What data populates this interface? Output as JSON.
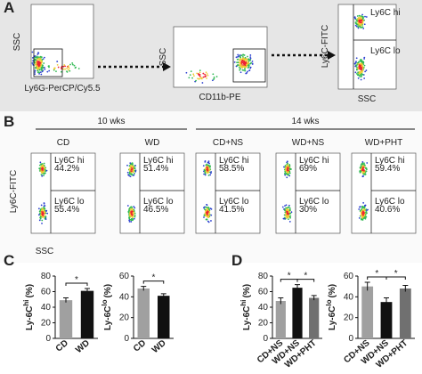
{
  "panel_a": {
    "label": "A",
    "plots": [
      {
        "ylabel": "SSC",
        "xlabel": "Ly6G-PerCP/Cy5.5"
      },
      {
        "ylabel": "SSC",
        "xlabel": "CD11b-PE"
      },
      {
        "ylabel": "Ly6C-FITC",
        "xlabel": "SSC",
        "gates": [
          "Ly6C hi",
          "Ly6C lo"
        ]
      }
    ]
  },
  "panel_b": {
    "label": "B",
    "periods": [
      "10 wks",
      "14 wks"
    ],
    "ylabel": "Ly6C-FITC",
    "xlabel": "SSC",
    "gates": [
      "Ly6C hi",
      "Ly6C lo"
    ],
    "groups": [
      {
        "name": "CD",
        "hi": "44.2%",
        "lo": "55.4%"
      },
      {
        "name": "WD",
        "hi": "51.4%",
        "lo": "46.5%"
      },
      {
        "name": "CD+NS",
        "hi": "58.5%",
        "lo": "41.5%"
      },
      {
        "name": "WD+NS",
        "hi": "69%",
        "lo": "30%"
      },
      {
        "name": "WD+PHT",
        "hi": "59.4%",
        "lo": "40.6%"
      }
    ]
  },
  "panel_c_label": "C",
  "panel_d_label": "D",
  "chart_data": [
    {
      "type": "bar",
      "ylabel": "Ly-6C",
      "ylabel_sup": "hi",
      "ylabel_unit": "(%)",
      "categories": [
        "CD",
        "WD"
      ],
      "values": [
        49,
        61
      ],
      "errors": [
        3,
        3
      ],
      "colors": [
        "#a0a0a0",
        "#111111"
      ],
      "ylim": [
        0,
        80
      ],
      "yticks": [
        0,
        20,
        40,
        60,
        80
      ],
      "annotations": [
        "*"
      ]
    },
    {
      "type": "bar",
      "ylabel": "Ly-6C",
      "ylabel_sup": "lo",
      "ylabel_unit": "(%)",
      "categories": [
        "CD",
        "WD"
      ],
      "values": [
        48,
        41
      ],
      "errors": [
        2,
        2
      ],
      "colors": [
        "#a0a0a0",
        "#111111"
      ],
      "ylim": [
        0,
        60
      ],
      "yticks": [
        0,
        20,
        40,
        60
      ],
      "annotations": [
        "*"
      ]
    },
    {
      "type": "bar",
      "ylabel": "Ly-6C",
      "ylabel_sup": "hi",
      "ylabel_unit": "(%)",
      "categories": [
        "CD+NS",
        "WD+NS",
        "WD+PHT"
      ],
      "values": [
        48,
        65,
        52
      ],
      "errors": [
        4,
        4,
        3
      ],
      "colors": [
        "#a0a0a0",
        "#111111",
        "#707070"
      ],
      "ylim": [
        0,
        80
      ],
      "yticks": [
        0,
        20,
        40,
        60,
        80
      ],
      "annotations": [
        "*",
        "*"
      ]
    },
    {
      "type": "bar",
      "ylabel": "Ly-6C",
      "ylabel_sup": "lo",
      "ylabel_unit": "(%)",
      "categories": [
        "CD+NS",
        "WD+NS",
        "WD+PHT"
      ],
      "values": [
        50,
        35,
        48
      ],
      "errors": [
        4,
        4,
        3
      ],
      "colors": [
        "#a0a0a0",
        "#111111",
        "#707070"
      ],
      "ylim": [
        0,
        60
      ],
      "yticks": [
        0,
        20,
        40,
        60
      ],
      "annotations": [
        "*",
        "*"
      ]
    }
  ]
}
